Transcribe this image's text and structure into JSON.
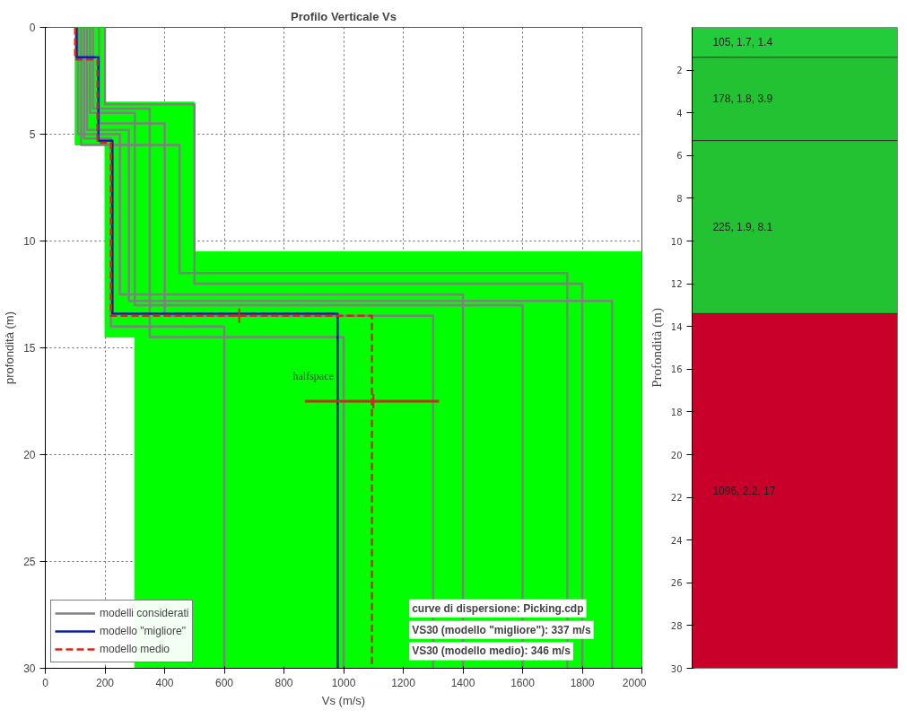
{
  "chart_data": [
    {
      "type": "line",
      "title": "Profilo Verticale Vs",
      "xlabel": "Vs (m/s)",
      "ylabel": "profondità (m)",
      "xlim": [
        0,
        2000
      ],
      "xticks": [
        0,
        200,
        400,
        600,
        800,
        1000,
        1200,
        1400,
        1600,
        1800,
        2000
      ],
      "ylim": [
        30,
        0
      ],
      "yticks": [
        0,
        5,
        10,
        15,
        20,
        25,
        30
      ],
      "grid": true,
      "legend": "bottom left",
      "series": [
        {
          "type": "area",
          "color": "#00ff00",
          "x": [
            100,
            200,
            200,
            500,
            500,
            2000,
            2000,
            300,
            300,
            200,
            200,
            100
          ],
          "values": [
            0,
            0,
            3.5,
            3.5,
            10.5,
            10.5,
            30,
            30,
            14.5,
            14.5,
            5.5,
            5.5
          ]
        },
        {
          "name": "modelli considerati",
          "color": "#808080",
          "x": [
            200,
            200,
            500,
            500,
            1800,
            1800
          ],
          "values": [
            0,
            3.6,
            3.6,
            12,
            12,
            30
          ]
        },
        {
          "color": "#808080",
          "x": [
            120,
            120,
            450,
            450,
            1750,
            1750
          ],
          "values": [
            0,
            5.5,
            5.5,
            11.5,
            11.5,
            30
          ]
        },
        {
          "color": "#808080",
          "x": [
            150,
            150,
            300,
            300,
            1600,
            1600
          ],
          "values": [
            0,
            4,
            4,
            13,
            13,
            30
          ]
        },
        {
          "color": "#808080",
          "x": [
            110,
            110,
            250,
            250,
            1400,
            1400
          ],
          "values": [
            0,
            5,
            5,
            12.5,
            12.5,
            30
          ]
        },
        {
          "color": "#808080",
          "x": [
            180,
            180,
            400,
            400,
            1300,
            1300
          ],
          "values": [
            0,
            4.5,
            4.5,
            13.5,
            13.5,
            30
          ]
        },
        {
          "color": "#808080",
          "x": [
            130,
            130,
            220,
            220,
            600,
            600
          ],
          "values": [
            0,
            5.2,
            5.2,
            14,
            14,
            30
          ]
        },
        {
          "color": "#808080",
          "x": [
            160,
            160,
            350,
            350,
            1000,
            1000
          ],
          "values": [
            0,
            3.8,
            3.8,
            14.5,
            14.5,
            30
          ]
        },
        {
          "color": "#808080",
          "x": [
            140,
            140,
            280,
            280,
            1900,
            1900
          ],
          "values": [
            0,
            4.8,
            4.8,
            12.8,
            12.8,
            30
          ]
        },
        {
          "name": "modello \"migliore\"",
          "color": "#0a1ea8",
          "line_style": "solid",
          "x": [
            105,
            105,
            178,
            178,
            225,
            225,
            980,
            980
          ],
          "values": [
            0,
            1.4,
            1.4,
            5.3,
            5.3,
            13.4,
            13.4,
            30
          ]
        },
        {
          "name": "modello medio",
          "color": "#d2281e",
          "line_style": "dashed",
          "x": [
            100,
            100,
            175,
            175,
            220,
            220,
            1095,
            1095
          ],
          "values": [
            0,
            1.5,
            1.5,
            5.4,
            5.4,
            13.5,
            13.5,
            30
          ]
        },
        {
          "type": "scatter",
          "marker": "cross",
          "color": "#c0301e",
          "x": [
            650,
            1100
          ],
          "values": [
            13.5,
            17.5
          ],
          "xerrors": [
            null,
            [
              870,
              1320
            ]
          ]
        }
      ],
      "annotations": [
        "halfspace",
        "curve di dispersione: Picking.cdp",
        "VS30 (modello \"migliore\"): 337 m/s",
        "VS30 (modello medio): 346 m/s"
      ]
    },
    {
      "type": "bar",
      "stacked": true,
      "categories": [
        null
      ],
      "ylabel": "Profondità (m)",
      "ylim": [
        30,
        0
      ],
      "yticks": [
        2,
        4,
        6,
        8,
        10,
        12,
        14,
        16,
        18,
        20,
        22,
        24,
        26,
        28,
        30
      ],
      "grid": false,
      "series": [
        {
          "color": "#22cc3a",
          "values": [
            1.4
          ],
          "value_labels": [
            "105, 1.7, 1.4"
          ]
        },
        {
          "color": "#22c232",
          "values": [
            3.9
          ],
          "value_labels": [
            "178, 1.8, 3.9"
          ]
        },
        {
          "color": "#22c232",
          "values": [
            8.1
          ],
          "value_labels": [
            "225, 1.9, 8.1"
          ]
        },
        {
          "color": "#c8002a",
          "values": [
            16.6
          ],
          "value_labels": [
            "1096, 2.2, 17"
          ]
        }
      ]
    }
  ]
}
